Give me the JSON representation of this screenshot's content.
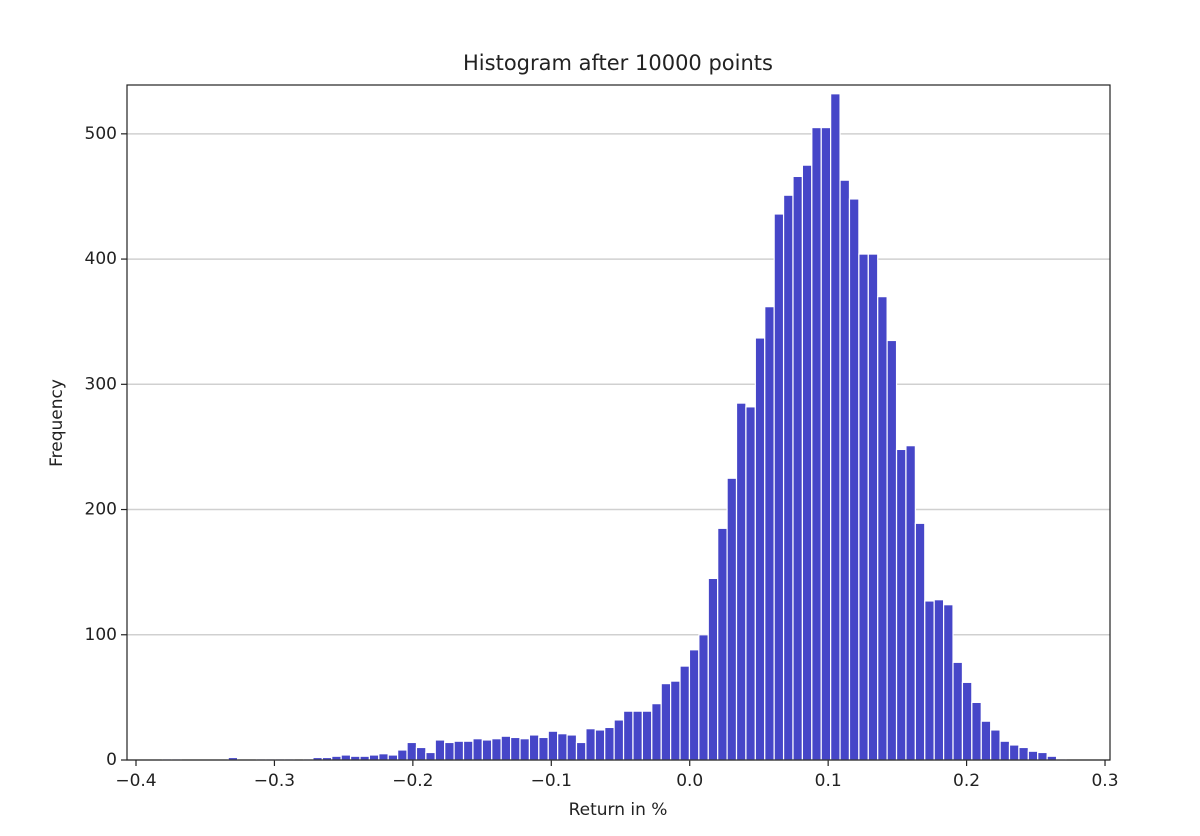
{
  "chart_data": {
    "type": "histogram",
    "title": "Histogram after 10000 points",
    "xlabel": "Return in %",
    "ylabel": "Frequency",
    "bins": [
      -0.381,
      -0.3742,
      -0.3674,
      -0.3606,
      -0.3538,
      -0.347,
      -0.3402,
      -0.3334,
      -0.3266,
      -0.3198,
      -0.313,
      -0.3062,
      -0.2994,
      -0.2926,
      -0.2858,
      -0.279,
      -0.2722,
      -0.2654,
      -0.2586,
      -0.2518,
      -0.245,
      -0.2382,
      -0.2314,
      -0.2246,
      -0.2178,
      -0.211,
      -0.2042,
      -0.1974,
      -0.1906,
      -0.1838,
      -0.177,
      -0.1702,
      -0.1634,
      -0.1566,
      -0.1498,
      -0.143,
      -0.1362,
      -0.1294,
      -0.1226,
      -0.1158,
      -0.109,
      -0.1022,
      -0.0954,
      -0.0886,
      -0.0818,
      -0.075,
      -0.0682,
      -0.0614,
      -0.0546,
      -0.0478,
      -0.041,
      -0.0342,
      -0.0274,
      -0.0206,
      -0.0138,
      -0.007,
      -0.0002,
      0.0066,
      0.0134,
      0.0202,
      0.027,
      0.0338,
      0.0406,
      0.0474,
      0.0542,
      0.061,
      0.0678,
      0.0746,
      0.0814,
      0.0882,
      0.095,
      0.1018,
      0.1086,
      0.1154,
      0.1222,
      0.129,
      0.1358,
      0.1426,
      0.1494,
      0.1562,
      0.163,
      0.1698,
      0.1766,
      0.1834,
      0.1902,
      0.197,
      0.2038,
      0.2106,
      0.2174,
      0.2242,
      0.231,
      0.2378,
      0.2446,
      0.2514,
      0.2582,
      0.265,
      0.2718
    ],
    "values": [
      1,
      1,
      0,
      0,
      0,
      0,
      0,
      2,
      0,
      0,
      1,
      1,
      1,
      1,
      0,
      1,
      2,
      2,
      3,
      4,
      3,
      3,
      4,
      5,
      4,
      8,
      14,
      10,
      6,
      16,
      14,
      15,
      15,
      17,
      16,
      17,
      19,
      18,
      17,
      20,
      18,
      23,
      21,
      20,
      14,
      25,
      24,
      26,
      32,
      39,
      39,
      39,
      45,
      61,
      63,
      75,
      88,
      100,
      145,
      185,
      225,
      285,
      282,
      337,
      362,
      436,
      451,
      466,
      475,
      505,
      505,
      532,
      463,
      448,
      404,
      404,
      370,
      335,
      248,
      251,
      189,
      127,
      128,
      124,
      78,
      62,
      46,
      31,
      24,
      15,
      12,
      10,
      7,
      6,
      3,
      1
    ],
    "color": "#4646c8",
    "xlim": [
      -0.4065,
      0.3036
    ],
    "ylim": [
      0,
      539
    ],
    "xticks": [
      {
        "value": -0.4,
        "label": "−0.4"
      },
      {
        "value": -0.3,
        "label": "−0.3"
      },
      {
        "value": -0.2,
        "label": "−0.2"
      },
      {
        "value": -0.1,
        "label": "−0.1"
      },
      {
        "value": 0,
        "label": "0.0"
      },
      0.1,
      0.2,
      0.3
    ],
    "yticks": [
      0,
      100,
      200,
      300,
      400,
      500
    ],
    "grid": true
  }
}
